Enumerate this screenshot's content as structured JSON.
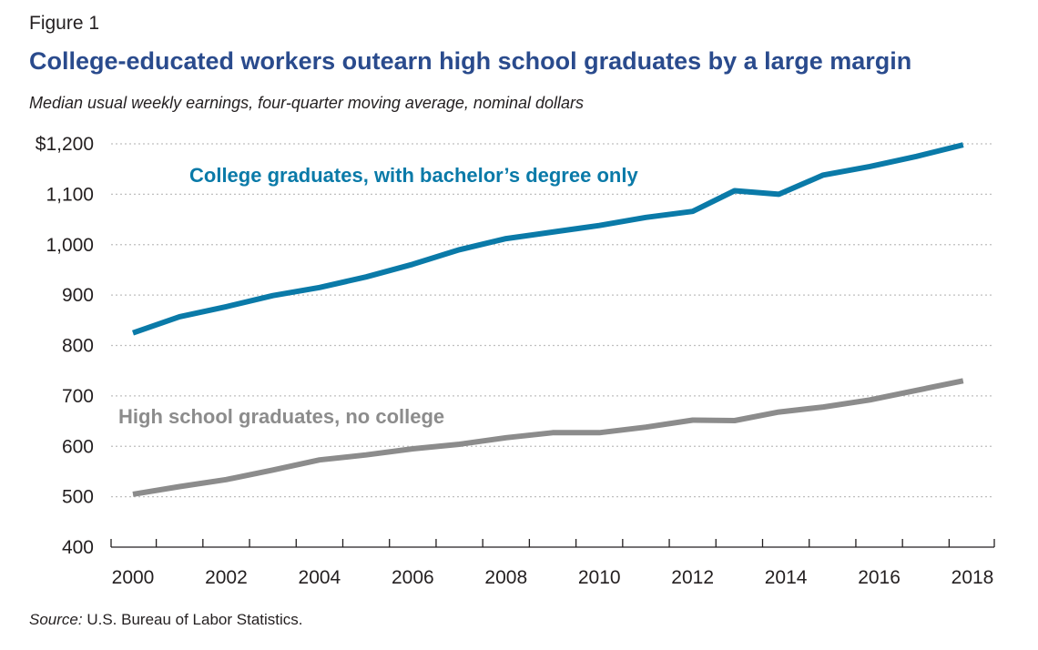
{
  "figure_label": "Figure 1",
  "source": {
    "label": "Source:",
    "text": "U.S. Bureau of Labor Statistics."
  },
  "colors": {
    "title": "#2a4b8d",
    "college": "#0a7aa8",
    "high_school": "#8c8c8c",
    "grid": "#bfbfbf",
    "axis": "#231f20"
  },
  "chart_data": {
    "type": "line",
    "title": "College-educated workers outearn high school graduates by a large margin",
    "subtitle": "Median usual weekly earnings, four-quarter moving average, nominal dollars",
    "xlabel": "",
    "ylabel": "",
    "xlim": [
      2000,
      2018
    ],
    "ylim": [
      400,
      1200
    ],
    "grid": "horizontal dotted",
    "x_ticks": [
      2000,
      2002,
      2004,
      2006,
      2008,
      2010,
      2012,
      2014,
      2016,
      2018
    ],
    "y_ticks": [
      400,
      500,
      600,
      700,
      800,
      900,
      1000,
      1100,
      1200
    ],
    "y_tick_labels": [
      "400",
      "500",
      "600",
      "700",
      "800",
      "900",
      "1,000",
      "1,100",
      "$1,200"
    ],
    "series": [
      {
        "name": "College graduates, with bachelor’s degree only",
        "color": "#0a7aa8",
        "points": [
          [
            2000.0,
            825
          ],
          [
            2001.0,
            857
          ],
          [
            2002.0,
            877
          ],
          [
            2003.0,
            899
          ],
          [
            2004.0,
            915
          ],
          [
            2005.0,
            936
          ],
          [
            2006.0,
            961
          ],
          [
            2007.0,
            990
          ],
          [
            2008.0,
            1012
          ],
          [
            2009.0,
            1025
          ],
          [
            2010.0,
            1038
          ],
          [
            2011.0,
            1054
          ],
          [
            2012.0,
            1066
          ],
          [
            2012.9,
            1107
          ],
          [
            2013.85,
            1100
          ],
          [
            2014.8,
            1138
          ],
          [
            2015.8,
            1155
          ],
          [
            2016.8,
            1175
          ],
          [
            2017.8,
            1198
          ]
        ]
      },
      {
        "name": "High school graduates, no college",
        "color": "#8c8c8c",
        "points": [
          [
            2000.0,
            505
          ],
          [
            2001.0,
            520
          ],
          [
            2002.0,
            534
          ],
          [
            2003.0,
            553
          ],
          [
            2004.0,
            573
          ],
          [
            2005.0,
            583
          ],
          [
            2006.0,
            595
          ],
          [
            2007.0,
            604
          ],
          [
            2008.0,
            617
          ],
          [
            2009.0,
            627
          ],
          [
            2010.0,
            627
          ],
          [
            2011.0,
            638
          ],
          [
            2012.0,
            652
          ],
          [
            2012.9,
            651
          ],
          [
            2013.85,
            668
          ],
          [
            2014.8,
            678
          ],
          [
            2015.8,
            692
          ],
          [
            2016.8,
            711
          ],
          [
            2017.8,
            730
          ]
        ]
      }
    ]
  }
}
